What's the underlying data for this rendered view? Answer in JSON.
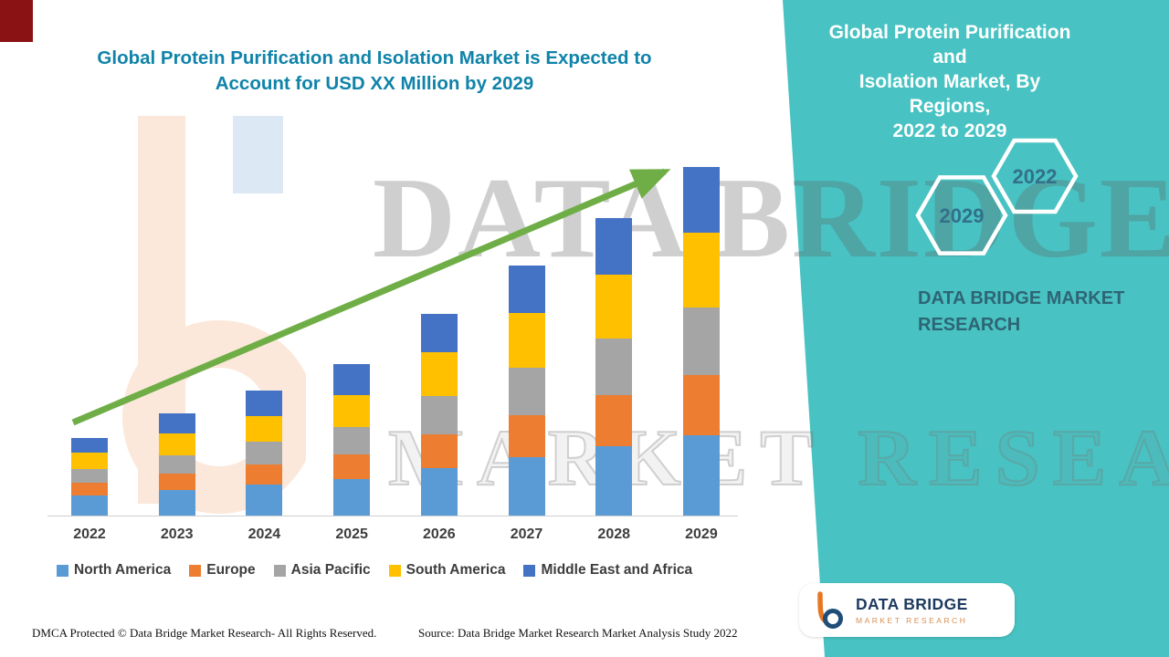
{
  "accent": {
    "teal_panel": "#48C2C2",
    "title_blue": "#0F83A9",
    "arrow_green": "#6FAE46",
    "corner_red": "#8A1215"
  },
  "left": {
    "title_lines": [
      "Global Protein Purification and Isolation Market is Expected to",
      "Account for USD XX Million by 2029"
    ]
  },
  "chart_data": {
    "type": "bar",
    "subtype": "stacked",
    "title": "Global Protein Purification and Isolation Market is Expected to Account for USD XX Million by 2029",
    "xlabel": "",
    "ylabel": "",
    "yaxis_visible": false,
    "legend_position": "bottom",
    "categories": [
      "2022",
      "2023",
      "2024",
      "2025",
      "2026",
      "2027",
      "2028",
      "2029"
    ],
    "series": [
      {
        "name": "North America",
        "color": "#5B9BD5",
        "values": [
          22,
          28,
          34,
          40,
          52,
          64,
          76,
          88
        ]
      },
      {
        "name": "Europe",
        "color": "#ED7D31",
        "values": [
          14,
          18,
          22,
          27,
          37,
          46,
          56,
          66
        ]
      },
      {
        "name": "Asia Pacific",
        "color": "#A5A5A5",
        "values": [
          15,
          20,
          25,
          30,
          42,
          52,
          62,
          74
        ]
      },
      {
        "name": "South America",
        "color": "#FFC000",
        "values": [
          18,
          24,
          28,
          35,
          48,
          60,
          70,
          82
        ]
      },
      {
        "name": "Middle East and Africa",
        "color": "#4472C4",
        "values": [
          16,
          22,
          28,
          34,
          42,
          52,
          62,
          72
        ]
      }
    ],
    "note": "Values estimated from bar heights; no numeric y-axis shown (USD XX Million)."
  },
  "right_panel": {
    "title_lines": [
      "Global Protein Purification and",
      "Isolation Market, By Regions,",
      "2022 to 2029"
    ],
    "hex_front": "2029",
    "hex_back": "2022",
    "brand_lines": [
      "DATA BRIDGE MARKET",
      "RESEARCH"
    ],
    "logo_title": "DATA BRIDGE",
    "logo_subtitle": "MARKET RESEARCH"
  },
  "watermark": {
    "line1": "DATA BRIDGE",
    "line2": "MARKET RESEARCH"
  },
  "footer": {
    "dmca": "DMCA Protected © Data Bridge Market Research- All Rights Reserved.",
    "source": "Source: Data Bridge Market Research Market Analysis Study 2022"
  }
}
